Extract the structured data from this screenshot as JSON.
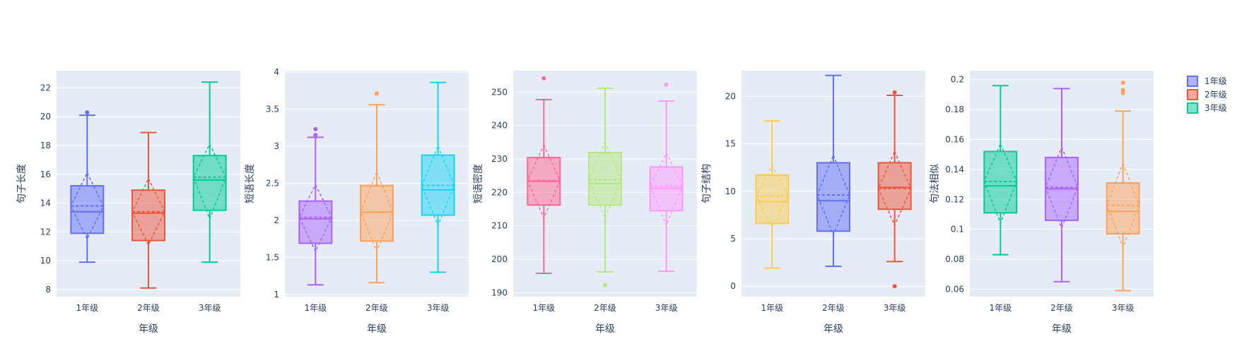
{
  "chart_data": [
    {
      "type": "box",
      "xlabel": "年级",
      "ylabel": "句子长度",
      "categories": [
        "1年级",
        "2年级",
        "3年级"
      ],
      "ylim": [
        7.5,
        23.2
      ],
      "yticks": [
        8,
        10,
        12,
        14,
        16,
        18,
        20,
        22
      ],
      "yticklabels": [
        "8",
        "10",
        "12",
        "14",
        "16",
        "18",
        "20",
        "22"
      ],
      "box_colors": [
        "#636efa",
        "#EF553B",
        "#00cc96"
      ],
      "boxes": [
        {
          "lowerfence": 9.9,
          "q1": 11.9,
          "median": 13.4,
          "mean": 13.8,
          "q3": 15.2,
          "upperfence": 20.1,
          "sd_low": 11.5,
          "sd_high": 16.1,
          "outliers": [
            20.3
          ]
        },
        {
          "lowerfence": 8.1,
          "q1": 11.4,
          "median": 13.3,
          "mean": 13.4,
          "q3": 14.9,
          "upperfence": 18.9,
          "sd_low": 11.1,
          "sd_high": 15.7,
          "outliers": []
        },
        {
          "lowerfence": 9.9,
          "q1": 13.5,
          "median": 15.6,
          "mean": 15.8,
          "q3": 17.3,
          "upperfence": 22.4,
          "sd_low": 12.9,
          "sd_high": 18.1,
          "outliers": []
        }
      ]
    },
    {
      "type": "box",
      "xlabel": "年级",
      "ylabel": "短语长度",
      "categories": [
        "1年级",
        "2年级",
        "3年级"
      ],
      "ylim": [
        0.97,
        4.02
      ],
      "yticks": [
        1,
        1.5,
        2,
        2.5,
        3,
        3.5,
        4
      ],
      "yticklabels": [
        "1",
        "1.5",
        "2",
        "2.5",
        "3",
        "3.5",
        "4"
      ],
      "box_colors": [
        "#ab63fa",
        "#FFA15A",
        "#19d3f3"
      ],
      "boxes": [
        {
          "lowerfence": 1.13,
          "q1": 1.69,
          "median": 2.02,
          "mean": 2.04,
          "q3": 2.26,
          "upperfence": 3.12,
          "sd_low": 1.58,
          "sd_high": 2.48,
          "outliers": [
            3.15,
            3.23
          ]
        },
        {
          "lowerfence": 1.16,
          "q1": 1.72,
          "median": 2.11,
          "mean": 2.11,
          "q3": 2.47,
          "upperfence": 3.56,
          "sd_low": 1.58,
          "sd_high": 2.65,
          "outliers": [
            3.71
          ]
        },
        {
          "lowerfence": 1.3,
          "q1": 2.07,
          "median": 2.41,
          "mean": 2.47,
          "q3": 2.88,
          "upperfence": 3.86,
          "sd_low": 1.93,
          "sd_high": 3.0,
          "outliers": []
        }
      ]
    },
    {
      "type": "box",
      "xlabel": "年级",
      "ylabel": "短语密度",
      "categories": [
        "1年级",
        "2年级",
        "3年级"
      ],
      "ylim": [
        188.8,
        256.4
      ],
      "yticks": [
        190,
        200,
        210,
        220,
        230,
        240,
        250
      ],
      "yticklabels": [
        "190",
        "200",
        "210",
        "220",
        "230",
        "240",
        "250"
      ],
      "box_colors": [
        "#FF6692",
        "#B6E880",
        "#FF97FF"
      ],
      "boxes": [
        {
          "lowerfence": 195.8,
          "q1": 216.2,
          "median": 223.3,
          "mean": 223.5,
          "q3": 230.4,
          "upperfence": 247.7,
          "sd_low": 212.3,
          "sd_high": 234.2,
          "outliers": [
            254.1
          ]
        },
        {
          "lowerfence": 196.2,
          "q1": 216.2,
          "median": 222.6,
          "mean": 223.8,
          "q3": 231.9,
          "upperfence": 251.1,
          "sd_low": 212.3,
          "sd_high": 235.1,
          "outliers": [
            192.3
          ]
        },
        {
          "lowerfence": 196.4,
          "q1": 214.5,
          "median": 221.2,
          "mean": 221.9,
          "q3": 227.6,
          "upperfence": 247.3,
          "sd_low": 210.1,
          "sd_high": 231.8,
          "outliers": [
            252.2
          ]
        }
      ]
    },
    {
      "type": "box",
      "xlabel": "年级",
      "ylabel": "句子结构",
      "categories": [
        "1年级",
        "2年级",
        "3年级"
      ],
      "ylim": [
        -1.1,
        22.7
      ],
      "yticks": [
        0,
        5,
        10,
        15,
        20
      ],
      "yticklabels": [
        "0",
        "5",
        "10",
        "15",
        "20"
      ],
      "box_colors": [
        "#FECB52",
        "#636efa",
        "#EF553B"
      ],
      "boxes": [
        {
          "lowerfence": 1.9,
          "q1": 6.6,
          "median": 8.9,
          "mean": 9.5,
          "q3": 11.7,
          "upperfence": 17.4,
          "sd_low": 6.2,
          "sd_high": 12.7,
          "outliers": []
        },
        {
          "lowerfence": 2.1,
          "q1": 5.8,
          "median": 9.0,
          "mean": 9.6,
          "q3": 13.0,
          "upperfence": 22.2,
          "sd_low": 5.4,
          "sd_high": 13.8,
          "outliers": []
        },
        {
          "lowerfence": 2.6,
          "q1": 8.1,
          "median": 10.4,
          "mean": 10.3,
          "q3": 13.0,
          "upperfence": 20.1,
          "sd_low": 6.4,
          "sd_high": 14.2,
          "outliers": [
            0.0,
            20.4
          ]
        }
      ]
    },
    {
      "type": "box",
      "xlabel": "年级",
      "ylabel": "句法相似",
      "categories": [
        "1年级",
        "2年级",
        "3年级"
      ],
      "ylim": [
        0.055,
        0.206
      ],
      "yticks": [
        0.06,
        0.08,
        0.1,
        0.12,
        0.14,
        0.16,
        0.18,
        0.2
      ],
      "yticklabels": [
        "0.06",
        "0.08",
        "0.1",
        "0.12",
        "0.14",
        "0.16",
        "0.18",
        "0.2"
      ],
      "box_colors": [
        "#00cc96",
        "#ab63fa",
        "#FFA15A"
      ],
      "boxes": [
        {
          "lowerfence": 0.083,
          "q1": 0.111,
          "median": 0.129,
          "mean": 0.132,
          "q3": 0.152,
          "upperfence": 0.196,
          "sd_low": 0.104,
          "sd_high": 0.157,
          "outliers": []
        },
        {
          "lowerfence": 0.065,
          "q1": 0.106,
          "median": 0.127,
          "mean": 0.128,
          "q3": 0.148,
          "upperfence": 0.194,
          "sd_low": 0.101,
          "sd_high": 0.155,
          "outliers": []
        },
        {
          "lowerfence": 0.059,
          "q1": 0.097,
          "median": 0.112,
          "mean": 0.116,
          "q3": 0.131,
          "upperfence": 0.179,
          "sd_low": 0.088,
          "sd_high": 0.144,
          "outliers": [
            0.191,
            0.193,
            0.198
          ]
        }
      ]
    }
  ],
  "legend": {
    "placement": "top-right",
    "items": [
      {
        "label": "1年级",
        "color": "#636efa"
      },
      {
        "label": "2年级",
        "color": "#EF553B"
      },
      {
        "label": "3年级",
        "color": "#00cc96"
      }
    ]
  },
  "style": {
    "plot_bg": "#E5ECF6",
    "grid_color": "#ffffff",
    "text_color": "#2a3f5f"
  }
}
